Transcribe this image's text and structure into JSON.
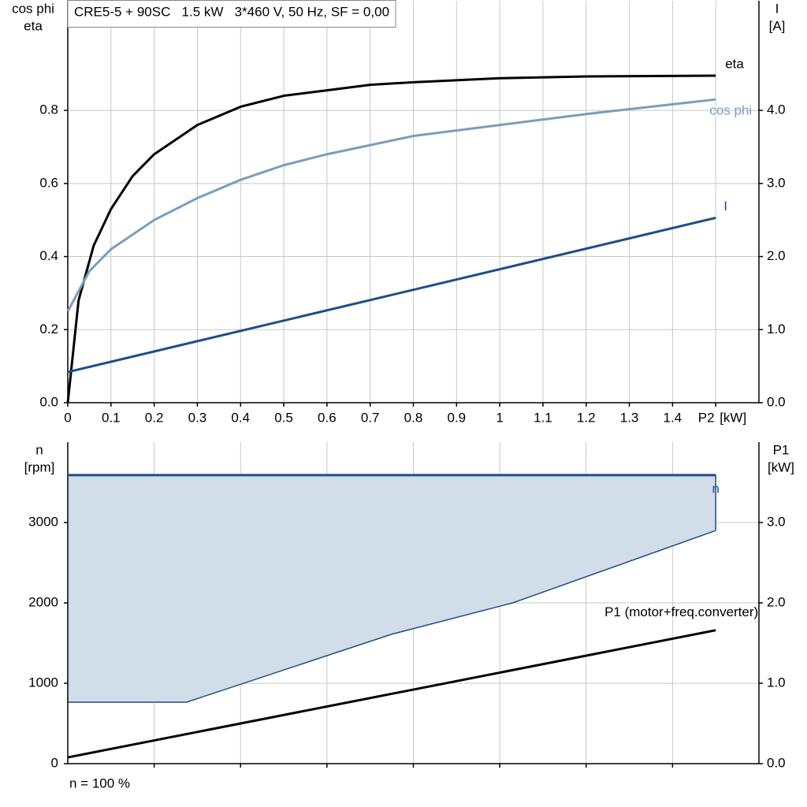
{
  "chart_data": [
    {
      "type": "line",
      "title": "CRE5-5 + 90SC   1.5 kW   3*460 V, 50 Hz, SF = 0,00",
      "ylabel": [
        "cos phi",
        "eta"
      ],
      "y2label": [
        "I",
        "[A]"
      ],
      "xlabel": "[kW]",
      "xlim": [
        0,
        1.6
      ],
      "xticks": [
        0,
        0.1,
        0.2,
        0.3,
        0.4,
        0.5,
        0.6,
        0.7,
        0.8,
        0.9,
        1.0,
        1.1,
        1.2,
        1.3,
        1.4,
        {
          "value": 1.5,
          "label": "P2"
        }
      ],
      "ylim": [
        0,
        1.1
      ],
      "yticks": [
        {
          "value": 0,
          "label": "0.0"
        },
        0.2,
        0.4,
        0.6,
        0.8
      ],
      "y2lim": [
        0,
        5.5
      ],
      "y2ticks": [
        {
          "value": 0,
          "label": "0.0"
        },
        {
          "value": 1,
          "label": "1.0"
        },
        {
          "value": 2,
          "label": "2.0"
        },
        {
          "value": 3,
          "label": "3.0"
        },
        {
          "value": 4,
          "label": "4.0"
        }
      ],
      "grid": true,
      "series": [
        {
          "name": "eta",
          "color": "#000000",
          "x": [
            0,
            0.025,
            0.06,
            0.1,
            0.15,
            0.2,
            0.3,
            0.4,
            0.5,
            0.6,
            0.7,
            0.8,
            1.0,
            1.2,
            1.5
          ],
          "values": [
            0,
            0.28,
            0.43,
            0.53,
            0.62,
            0.68,
            0.76,
            0.81,
            0.84,
            0.855,
            0.87,
            0.877,
            0.888,
            0.893,
            0.895
          ]
        },
        {
          "name": "cos phi",
          "color": "#7b9dbd",
          "x": [
            0,
            0.05,
            0.1,
            0.2,
            0.3,
            0.4,
            0.5,
            0.6,
            0.8,
            1.0,
            1.2,
            1.5
          ],
          "values": [
            0.25,
            0.36,
            0.42,
            0.5,
            0.56,
            0.61,
            0.65,
            0.68,
            0.73,
            0.76,
            0.79,
            0.83
          ]
        },
        {
          "name": "I",
          "color": "#1f4e87",
          "axis": "y2",
          "x": [
            0,
            1.5
          ],
          "values": [
            0.42,
            2.53
          ]
        }
      ]
    },
    {
      "type": "line",
      "ylabel": [
        "n",
        "[rpm]"
      ],
      "y2label": [
        "P1",
        "[kW]"
      ],
      "note": "n = 100 %",
      "xlim": [
        0,
        1.6
      ],
      "xticks": [
        0.2,
        0.4,
        0.6,
        0.8,
        1.0,
        1.2,
        1.4
      ],
      "ylim": [
        0,
        4000
      ],
      "yticks": [
        0,
        1000,
        2000,
        3000
      ],
      "y2lim": [
        0,
        4.0
      ],
      "y2ticks": [
        {
          "value": 0,
          "label": "0.0"
        },
        {
          "value": 1,
          "label": "1.0"
        },
        {
          "value": 2,
          "label": "2.0"
        },
        {
          "value": 3,
          "label": "3.0"
        }
      ],
      "grid": true,
      "area": {
        "color": "#d1dde9",
        "edge": "#1f4e87",
        "x": [
          0,
          0.275,
          0.75,
          1.03,
          1.5
        ],
        "lower": [
          765,
          765,
          1610,
          2000,
          2900
        ]
      },
      "series": [
        {
          "name": "n",
          "color": "#1f4e87",
          "x": [
            0,
            1.5
          ],
          "values": [
            3590,
            3590
          ]
        },
        {
          "name": "P1 (motor+freq.converter)",
          "color": "#000000",
          "axis": "y2",
          "x": [
            0,
            1.5
          ],
          "values": [
            0.078,
            1.66
          ]
        }
      ]
    }
  ]
}
